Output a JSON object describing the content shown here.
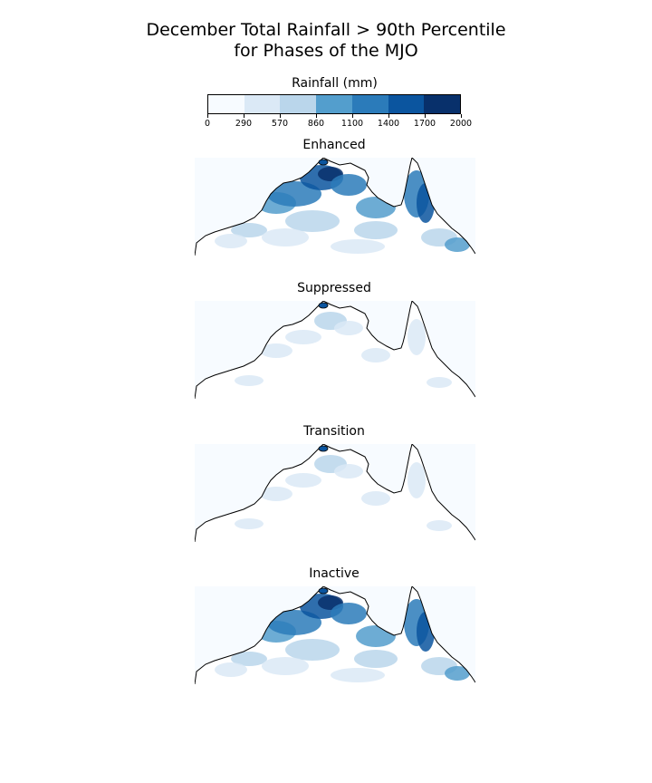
{
  "figure": {
    "title_line1": "December Total Rainfall > 90th Percentile",
    "title_line2": "for Phases of the MJO"
  },
  "colorbar": {
    "label": "Rainfall (mm)",
    "ticks": [
      "0",
      "290",
      "570",
      "860",
      "1100",
      "1400",
      "1700",
      "2000"
    ],
    "colors": [
      "#f7fbff",
      "#dbe9f6",
      "#bad6eb",
      "#539ecd",
      "#2b7bba",
      "#0b559f",
      "#08306b"
    ]
  },
  "panels": [
    {
      "title": "Enhanced",
      "intensity": "high"
    },
    {
      "title": "Suppressed",
      "intensity": "low"
    },
    {
      "title": "Transition",
      "intensity": "low"
    },
    {
      "title": "Inactive",
      "intensity": "high"
    }
  ],
  "map": {
    "background_color": "#f7fbff",
    "coastline_color": "#000000"
  }
}
